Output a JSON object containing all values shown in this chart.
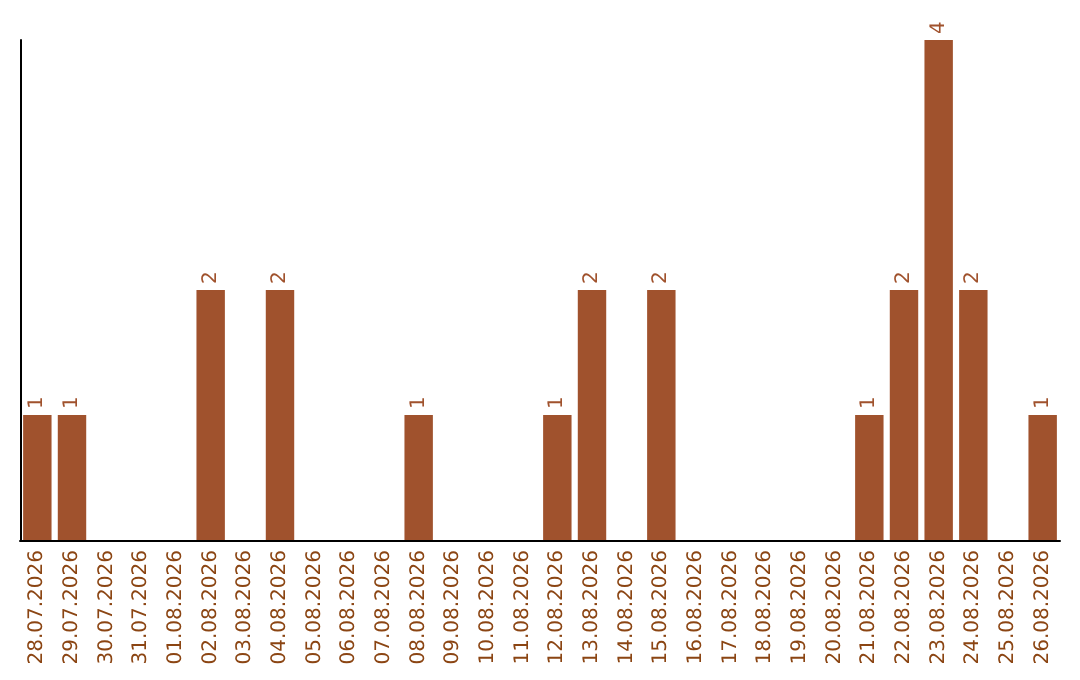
{
  "chart_data": {
    "type": "bar",
    "categories": [
      "28.07.2026",
      "29.07.2026",
      "30.07.2026",
      "31.07.2026",
      "01.08.2026",
      "02.08.2026",
      "03.08.2026",
      "04.08.2026",
      "05.08.2026",
      "06.08.2026",
      "07.08.2026",
      "08.08.2026",
      "09.08.2026",
      "10.08.2026",
      "11.08.2026",
      "12.08.2026",
      "13.08.2026",
      "14.08.2026",
      "15.08.2026",
      "16.08.2026",
      "17.08.2026",
      "18.08.2026",
      "19.08.2026",
      "20.08.2026",
      "21.08.2026",
      "22.08.2026",
      "23.08.2026",
      "24.08.2026",
      "25.08.2026",
      "26.08.2026"
    ],
    "values": [
      1,
      1,
      0,
      0,
      0,
      2,
      0,
      2,
      0,
      0,
      0,
      1,
      0,
      0,
      0,
      1,
      2,
      0,
      2,
      0,
      0,
      0,
      0,
      0,
      1,
      2,
      4,
      2,
      0,
      1
    ],
    "value_labels": [
      "1",
      "1",
      null,
      null,
      null,
      "2",
      null,
      "2",
      null,
      null,
      null,
      "1",
      null,
      null,
      null,
      "1",
      "2",
      null,
      "2",
      null,
      null,
      null,
      null,
      null,
      "1",
      "2",
      "4",
      "2",
      null,
      "1"
    ],
    "color": "#a0522d",
    "tick_labels": "x",
    "grid": false
  }
}
